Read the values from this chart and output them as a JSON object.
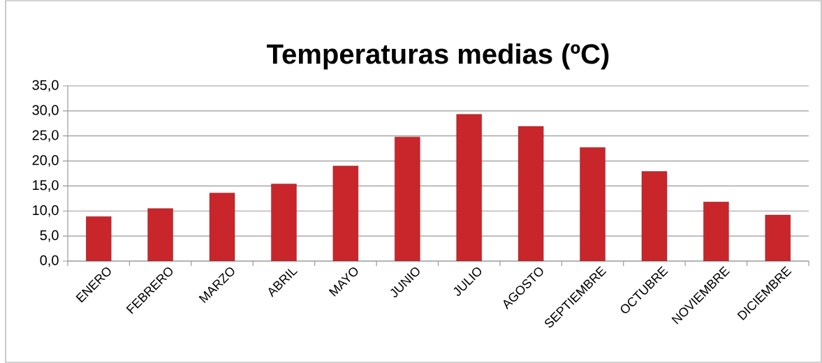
{
  "chart_data": {
    "type": "bar",
    "title": "Temperaturas medias (ºC)",
    "categories": [
      "ENERO",
      "FEBRERO",
      "MARZO",
      "ABRIL",
      "MAYO",
      "JUNIO",
      "JULIO",
      "AGOSTO",
      "SEPTIEMBRE",
      "OCTUBRE",
      "NOVIEMBRE",
      "DICIEMBRE"
    ],
    "values": [
      8.9,
      10.5,
      13.6,
      15.4,
      19.0,
      24.8,
      29.3,
      26.9,
      22.7,
      17.9,
      11.8,
      9.2
    ],
    "color": "#c8262b",
    "ylim": [
      0,
      35
    ],
    "yticks": [
      {
        "value": 0,
        "label": "0,0"
      },
      {
        "value": 5,
        "label": "5,0"
      },
      {
        "value": 10,
        "label": "10,0"
      },
      {
        "value": 15,
        "label": "15,0"
      },
      {
        "value": 20,
        "label": "20,0"
      },
      {
        "value": 25,
        "label": "25,0"
      },
      {
        "value": 30,
        "label": "30,0"
      },
      {
        "value": 35,
        "label": "35,0"
      }
    ],
    "grid": "y"
  }
}
